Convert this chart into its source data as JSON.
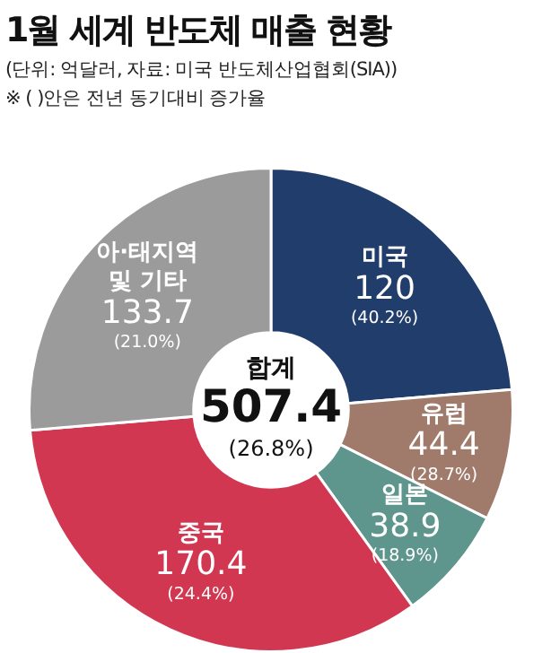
{
  "chart_data": {
    "type": "donut",
    "title": "1월 세계 반도체 매출 현황",
    "subtitle": "(단위: 억달러, 자료: 미국 반도체산업협회(SIA))",
    "categories": [
      "미국",
      "유럽",
      "일본",
      "중국",
      "아·태지역 및 기타"
    ],
    "values": [
      120,
      44.4,
      38.9,
      170.4,
      133.7
    ],
    "colors": [
      "#213d6b",
      "#a07a6a",
      "#5e968e",
      "#d23751",
      "#9b9b9b"
    ],
    "data_labels": true,
    "legend": false,
    "annotations": [
      "※ ( )안은 전년 동기대비 증가율",
      "합계",
      "507.4",
      "(26.8%)",
      {
        "text": "(40.2%)",
        "x": "미국"
      },
      {
        "text": "(28.7%)",
        "x": "유럽"
      },
      {
        "text": "(18.9%)",
        "x": "일본"
      },
      {
        "text": "(24.4%)",
        "x": "중국"
      },
      {
        "text": "(21.0%)",
        "x": "아·태지역 및 기타"
      }
    ]
  }
}
